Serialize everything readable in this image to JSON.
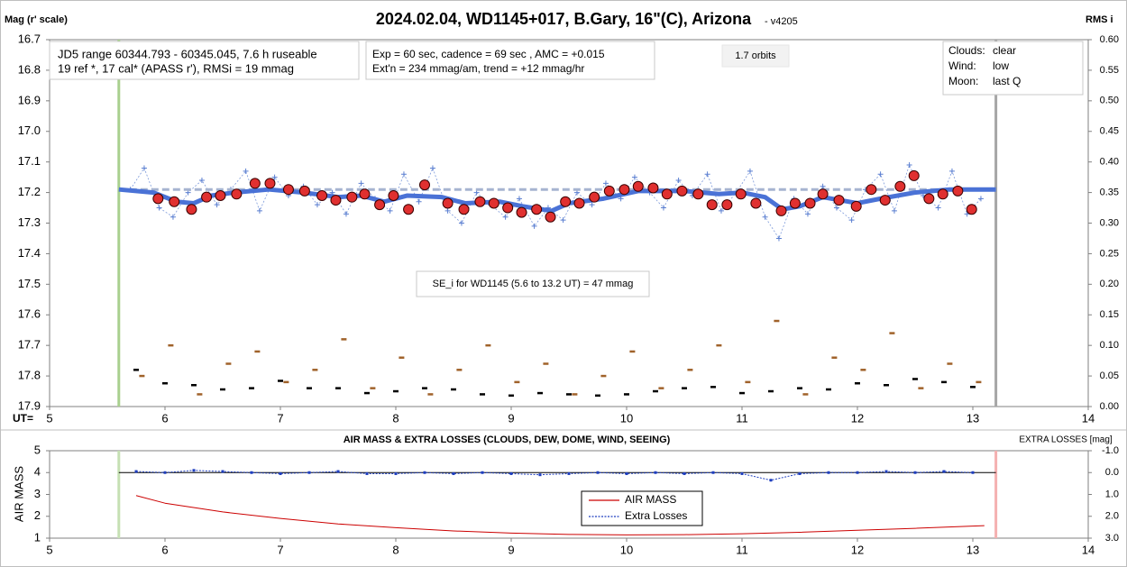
{
  "chart_data": [
    {
      "type": "scatter",
      "title": "2024.02.04, WD1145+017, B.Gary, 16\"(C), Arizona",
      "subtitle": "- v4205",
      "ylabel": "Mag (r' scale)",
      "y2label": "RMS i",
      "xlabel": "UT=",
      "annotations": {
        "jd": [
          "JD5 range 60344.793 - 60345.045, 7.6 h ruseable",
          "19 ref *, 17 cal*  (APASS r'), RMSi = 19 mmag"
        ],
        "exp": [
          "Exp = 60 sec, cadence = 69 sec , AMC = +0.015",
          "Ext'n = 234 mmag/am, trend = +12 mmag/hr"
        ],
        "orbits": "1.7 orbits",
        "se": "SE_i for WD1145 (5.6 to 13.2 UT) = 47 mmag",
        "weather": [
          [
            "Clouds:",
            "clear"
          ],
          [
            "Wind:",
            "low"
          ],
          [
            "Moon:",
            "last Q"
          ]
        ]
      },
      "xlim": [
        5,
        14
      ],
      "xticks": [
        5,
        6,
        7,
        8,
        9,
        10,
        11,
        12,
        13,
        14
      ],
      "ylim": [
        16.7,
        17.9
      ],
      "y_inverted": true,
      "yticks": [
        {
          "value": 16.7,
          "label": "16.7"
        },
        {
          "value": 16.8,
          "label": "16.8"
        },
        {
          "value": 16.9,
          "label": "16.9"
        },
        {
          "value": 17.0,
          "label": "17.0"
        },
        {
          "value": 17.1,
          "label": "17.1"
        },
        {
          "value": 17.2,
          "label": "17.2"
        },
        {
          "value": 17.3,
          "label": "17.3"
        },
        {
          "value": 17.4,
          "label": "17.4"
        },
        {
          "value": 17.5,
          "label": "17.5"
        },
        {
          "value": 17.6,
          "label": "17.6"
        },
        {
          "value": 17.7,
          "label": "17.7"
        },
        {
          "value": 17.8,
          "label": "17.8"
        },
        {
          "value": 17.9,
          "label": "17.9"
        }
      ],
      "y2lim": [
        0,
        0.6
      ],
      "y2ticks": [
        {
          "value": 0.6,
          "label": "0.60"
        },
        {
          "value": 0.55,
          "label": "0.55"
        },
        {
          "value": 0.5,
          "label": "0.50"
        },
        {
          "value": 0.45,
          "label": "0.45"
        },
        {
          "value": 0.4,
          "label": "0.40"
        },
        {
          "value": 0.35,
          "label": "0.35"
        },
        {
          "value": 0.3,
          "label": "0.30"
        },
        {
          "value": 0.25,
          "label": "0.25"
        },
        {
          "value": 0.2,
          "label": "0.20"
        },
        {
          "value": 0.15,
          "label": "0.15"
        },
        {
          "value": 0.1,
          "label": "0.10"
        },
        {
          "value": 0.05,
          "label": "0.05"
        },
        {
          "value": 0,
          "label": "0.00"
        }
      ],
      "vlines": [
        {
          "value": 5.6,
          "color": "#a9d08e"
        },
        {
          "value": 13.2,
          "color": "#a6a6a6"
        }
      ],
      "series": [
        {
          "marker": "plus",
          "color": "#5b7fd1",
          "x": [
            5.7,
            5.82,
            5.95,
            6.07,
            6.2,
            6.32,
            6.45,
            6.57,
            6.7,
            6.82,
            6.95,
            7.07,
            7.2,
            7.32,
            7.45,
            7.57,
            7.7,
            7.82,
            7.95,
            8.07,
            8.2,
            8.32,
            8.45,
            8.57,
            8.7,
            8.82,
            8.95,
            9.07,
            9.2,
            9.32,
            9.45,
            9.57,
            9.7,
            9.82,
            9.95,
            10.07,
            10.2,
            10.32,
            10.45,
            10.57,
            10.7,
            10.82,
            10.95,
            11.07,
            11.2,
            11.32,
            11.45,
            11.57,
            11.7,
            11.82,
            11.95,
            12.07,
            12.2,
            12.32,
            12.45,
            12.57,
            12.7,
            12.82,
            12.95,
            13.07
          ],
          "values": [
            17.19,
            17.12,
            17.25,
            17.28,
            17.2,
            17.16,
            17.24,
            17.19,
            17.13,
            17.26,
            17.15,
            17.21,
            17.18,
            17.24,
            17.2,
            17.27,
            17.17,
            17.22,
            17.26,
            17.14,
            17.23,
            17.12,
            17.26,
            17.3,
            17.2,
            17.24,
            17.28,
            17.22,
            17.31,
            17.25,
            17.29,
            17.2,
            17.24,
            17.17,
            17.22,
            17.15,
            17.2,
            17.25,
            17.16,
            17.21,
            17.14,
            17.26,
            17.2,
            17.13,
            17.28,
            17.35,
            17.22,
            17.27,
            17.18,
            17.25,
            17.29,
            17.19,
            17.14,
            17.26,
            17.11,
            17.21,
            17.25,
            17.13,
            17.27,
            17.22
          ]
        },
        {
          "marker": "dashed",
          "color": "#a6b4d0",
          "x": [
            5.6,
            13.2
          ],
          "values": [
            17.19,
            17.19
          ]
        },
        {
          "marker": "line",
          "color": "#4a72d6",
          "width": 5,
          "x": [
            5.6,
            5.9,
            6.1,
            6.25,
            6.4,
            6.6,
            6.9,
            7.2,
            7.5,
            7.7,
            7.9,
            8.1,
            8.4,
            8.6,
            8.9,
            9.1,
            9.35,
            9.5,
            9.8,
            10.1,
            10.5,
            10.8,
            11.0,
            11.2,
            11.35,
            11.5,
            11.7,
            12.0,
            12.2,
            12.5,
            12.8,
            13.2
          ],
          "values": [
            17.19,
            17.2,
            17.23,
            17.235,
            17.21,
            17.2,
            17.19,
            17.2,
            17.215,
            17.21,
            17.23,
            17.21,
            17.215,
            17.235,
            17.23,
            17.245,
            17.26,
            17.235,
            17.22,
            17.195,
            17.195,
            17.205,
            17.2,
            17.215,
            17.255,
            17.245,
            17.215,
            17.235,
            17.22,
            17.2,
            17.19,
            17.19
          ]
        },
        {
          "marker": "circle",
          "color": "#e03030",
          "x": [
            5.94,
            6.08,
            6.23,
            6.36,
            6.48,
            6.62,
            6.78,
            6.91,
            7.07,
            7.21,
            7.36,
            7.48,
            7.62,
            7.73,
            7.86,
            7.98,
            8.11,
            8.25,
            8.45,
            8.59,
            8.73,
            8.85,
            8.97,
            9.09,
            9.22,
            9.34,
            9.47,
            9.59,
            9.72,
            9.85,
            9.98,
            10.1,
            10.23,
            10.35,
            10.48,
            10.62,
            10.74,
            10.87,
            10.99,
            11.12,
            11.34,
            11.46,
            11.59,
            11.7,
            11.84,
            11.99,
            12.12,
            12.24,
            12.37,
            12.49,
            12.62,
            12.74,
            12.87,
            12.99
          ],
          "values": [
            17.22,
            17.23,
            17.255,
            17.215,
            17.21,
            17.205,
            17.17,
            17.17,
            17.19,
            17.195,
            17.21,
            17.225,
            17.215,
            17.205,
            17.24,
            17.21,
            17.255,
            17.175,
            17.235,
            17.255,
            17.23,
            17.235,
            17.25,
            17.265,
            17.255,
            17.28,
            17.23,
            17.235,
            17.215,
            17.195,
            17.19,
            17.18,
            17.185,
            17.205,
            17.195,
            17.205,
            17.24,
            17.24,
            17.205,
            17.235,
            17.26,
            17.235,
            17.235,
            17.205,
            17.225,
            17.245,
            17.19,
            17.225,
            17.18,
            17.145,
            17.22,
            17.205,
            17.195,
            17.255
          ]
        },
        {
          "marker": "dash",
          "color": "#000000",
          "axis": "y2",
          "x": [
            5.75,
            6.0,
            6.25,
            6.5,
            6.75,
            7.0,
            7.25,
            7.5,
            7.75,
            8.0,
            8.25,
            8.5,
            8.75,
            9.0,
            9.25,
            9.5,
            9.75,
            10.0,
            10.25,
            10.5,
            10.75,
            11.0,
            11.25,
            11.5,
            11.75,
            12.0,
            12.25,
            12.5,
            12.75,
            13.0
          ],
          "values": [
            0.06,
            0.038,
            0.035,
            0.028,
            0.03,
            0.042,
            0.03,
            0.03,
            0.022,
            0.025,
            0.03,
            0.028,
            0.02,
            0.018,
            0.022,
            0.02,
            0.018,
            0.02,
            0.025,
            0.03,
            0.032,
            0.022,
            0.025,
            0.03,
            0.028,
            0.038,
            0.035,
            0.045,
            0.04,
            0.032
          ]
        },
        {
          "marker": "dash",
          "color": "#a0622a",
          "axis": "y2",
          "x": [
            5.8,
            6.05,
            6.3,
            6.55,
            6.8,
            7.05,
            7.3,
            7.55,
            7.8,
            8.05,
            8.3,
            8.55,
            8.8,
            9.05,
            9.3,
            9.55,
            9.8,
            10.05,
            10.3,
            10.55,
            10.8,
            11.05,
            11.3,
            11.55,
            11.8,
            12.05,
            12.3,
            12.55,
            12.8,
            13.05
          ],
          "values": [
            0.05,
            0.1,
            0.02,
            0.07,
            0.09,
            0.04,
            0.06,
            0.11,
            0.03,
            0.08,
            0.02,
            0.06,
            0.1,
            0.04,
            0.07,
            0.02,
            0.05,
            0.09,
            0.03,
            0.06,
            0.1,
            0.04,
            0.14,
            0.02,
            0.08,
            0.06,
            0.12,
            0.03,
            0.07,
            0.04
          ]
        }
      ]
    },
    {
      "type": "line",
      "title": "AIR MASS & EXTRA LOSSES (CLOUDS, DEW, DOME, WIND, SEEING)",
      "ylabel": "AIR MASS",
      "y2label": "EXTRA LOSSES [mag]",
      "xlim": [
        5,
        14
      ],
      "xticks": [
        5,
        6,
        7,
        8,
        9,
        10,
        11,
        12,
        13,
        14
      ],
      "ylim": [
        1,
        5
      ],
      "yticks": [
        1,
        2,
        3,
        4,
        5
      ],
      "y2lim": [
        -1,
        3
      ],
      "y2_inverted": true,
      "y2ticks": [
        {
          "value": -1,
          "label": "-1.0"
        },
        {
          "value": 0,
          "label": "0.0"
        },
        {
          "value": 1,
          "label": "1.0"
        },
        {
          "value": 2,
          "label": "2.0"
        },
        {
          "value": 3,
          "label": "3.0"
        }
      ],
      "y2hline": 0,
      "vlines": [
        {
          "value": 5.6,
          "color": "#c6e0b4"
        },
        {
          "value": 13.2,
          "color": "#f4b0b0"
        }
      ],
      "legend": "center",
      "series": [
        {
          "name": "AIR MASS",
          "marker": "line",
          "color": "#cc0000",
          "width": 1,
          "x": [
            5.75,
            6.0,
            6.5,
            7.0,
            7.5,
            8.0,
            8.5,
            9.0,
            9.5,
            10.0,
            10.5,
            11.0,
            11.5,
            12.0,
            12.5,
            13.1
          ],
          "values": [
            2.95,
            2.6,
            2.2,
            1.9,
            1.65,
            1.48,
            1.33,
            1.23,
            1.17,
            1.15,
            1.16,
            1.2,
            1.27,
            1.36,
            1.45,
            1.57
          ]
        },
        {
          "name": "Extra Losses",
          "marker": "dots",
          "color": "#1f3fbf",
          "axis": "y2",
          "x": [
            5.75,
            6.0,
            6.25,
            6.5,
            6.75,
            7.0,
            7.25,
            7.5,
            7.75,
            8.0,
            8.25,
            8.5,
            8.75,
            9.0,
            9.25,
            9.5,
            9.75,
            10.0,
            10.25,
            10.5,
            10.75,
            11.0,
            11.25,
            11.5,
            11.75,
            12.0,
            12.25,
            12.5,
            12.75,
            13.0
          ],
          "values": [
            -0.05,
            0.0,
            -0.1,
            -0.05,
            0.0,
            0.05,
            0.0,
            -0.05,
            0.05,
            0.05,
            0.0,
            0.05,
            0.0,
            0.05,
            0.1,
            0.05,
            0.0,
            0.05,
            0.0,
            0.05,
            0.0,
            0.05,
            0.35,
            0.05,
            0.0,
            0.0,
            -0.05,
            0.0,
            -0.05,
            0.0
          ]
        }
      ]
    }
  ]
}
